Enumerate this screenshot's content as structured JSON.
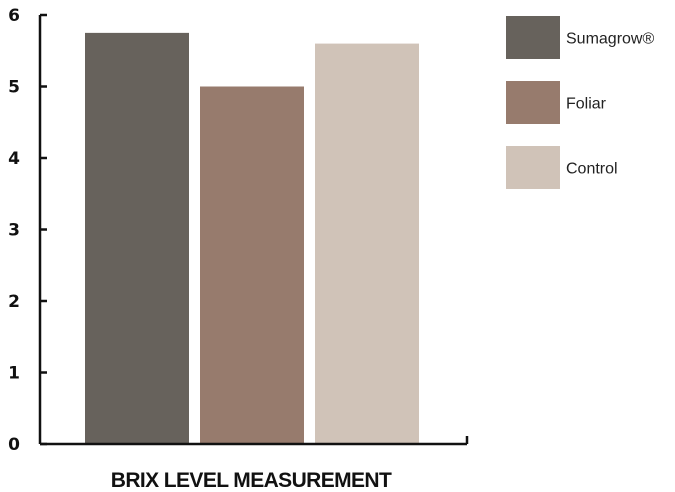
{
  "chart_data": {
    "type": "bar",
    "title": "",
    "xlabel": "BRIX LEVEL MEASUREMENT",
    "ylabel": "",
    "ylim": [
      0,
      6
    ],
    "yticks": [
      0,
      1,
      2,
      3,
      4,
      5,
      6
    ],
    "grid": false,
    "legend_position": "right",
    "series": [
      {
        "name": "Sumagrow®",
        "value": 5.75,
        "color": "#67625c"
      },
      {
        "name": "Foliar",
        "value": 5.0,
        "color": "#977b6d"
      },
      {
        "name": "Control",
        "value": 5.6,
        "color": "#d0c3b8"
      }
    ]
  }
}
